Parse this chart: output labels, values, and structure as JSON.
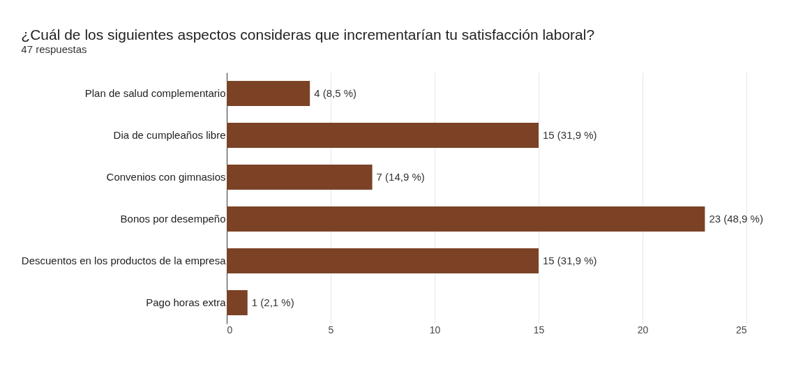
{
  "chart_data": {
    "type": "bar",
    "orientation": "horizontal",
    "title": "¿Cuál de los siguientes aspectos consideras que incrementarían tu satisfacción laboral?",
    "subtitle": "47 respuestas",
    "categories": [
      "Plan de salud complementario",
      "Dia de cumpleaños libre",
      "Convenios con gimnasios",
      "Bonos por desempeño",
      "Descuentos en los productos de la empresa",
      "Pago horas extra"
    ],
    "values": [
      4,
      15,
      7,
      23,
      15,
      1
    ],
    "value_labels": [
      "4 (8,5 %)",
      "15 (31,9 %)",
      "7 (14,9 %)",
      "23 (48,9 %)",
      "15 (31,9 %)",
      "1 (2,1 %)"
    ],
    "color": "#7b4226",
    "xlim": [
      0,
      25
    ],
    "xticks": [
      0,
      5,
      10,
      15,
      20,
      25
    ],
    "grid": "x"
  }
}
